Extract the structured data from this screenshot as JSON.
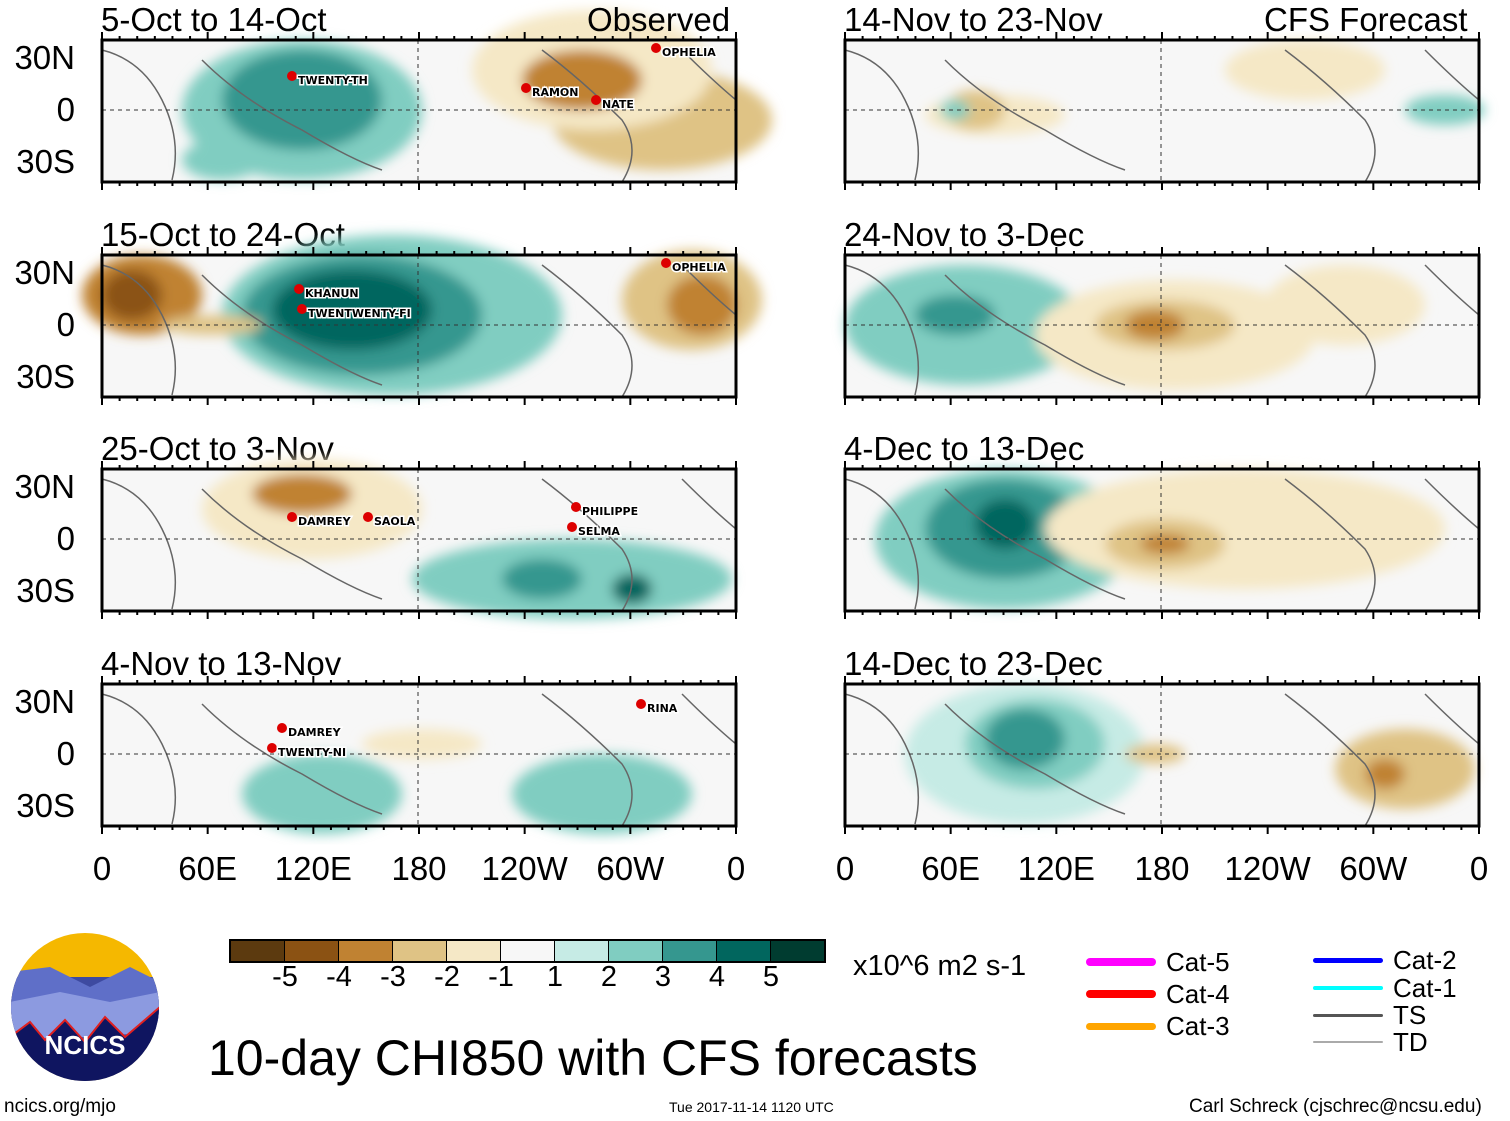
{
  "headers": {
    "left": "Observed",
    "right": "CFS Forecast"
  },
  "panels": [
    {
      "title": "5-Oct to 14-Oct",
      "storms": [
        "TWENTY-TH",
        "RAMON",
        "NATE",
        "OPHELIA"
      ]
    },
    {
      "title": "15-Oct to 24-Oct",
      "storms": [
        "KHANUN",
        "TWENTWENTY-FI",
        "OPHELIA"
      ]
    },
    {
      "title": "25-Oct to 3-Nov",
      "storms": [
        "DAMREY",
        "SAOLA",
        "PHILIPPE",
        "SELMA"
      ]
    },
    {
      "title": "4-Nov to 13-Nov",
      "storms": [
        "DAMREY",
        "TWENTY-NI",
        "RINA"
      ]
    },
    {
      "title": "14-Nov to 23-Nov",
      "storms": []
    },
    {
      "title": "24-Nov to 3-Dec",
      "storms": []
    },
    {
      "title": "4-Dec to 13-Dec",
      "storms": []
    },
    {
      "title": "14-Dec to 23-Dec",
      "storms": []
    }
  ],
  "y_labels": [
    "30N",
    "0",
    "30S"
  ],
  "x_labels": [
    "0",
    "60E",
    "120E",
    "180",
    "120W",
    "60W",
    "0"
  ],
  "colorbar": {
    "colors": [
      "#5c3a0f",
      "#8b5213",
      "#c08232",
      "#dfc385",
      "#f5e8c6",
      "#f7f7f7",
      "#c6ebe5",
      "#80cdc1",
      "#35978f",
      "#01665e",
      "#003c30"
    ],
    "labels": [
      "-5",
      "-4",
      "-3",
      "-2",
      "-1",
      "1",
      "2",
      "3",
      "4",
      "5"
    ],
    "units": "x10^6 m2 s-1"
  },
  "legend": [
    {
      "label": "Cat-5",
      "color": "#ff00ff"
    },
    {
      "label": "Cat-4",
      "color": "#ff0000"
    },
    {
      "label": "Cat-3",
      "color": "#ffa500"
    },
    {
      "label": "Cat-2",
      "color": "#0000ff"
    },
    {
      "label": "Cat-1",
      "color": "#00ffff"
    },
    {
      "label": "TS",
      "color": "#555555"
    },
    {
      "label": "TD",
      "color": "#aaaaaa"
    }
  ],
  "title": "10-day CHI850 with CFS forecasts",
  "logo_text": "NCICS",
  "footer": {
    "left": "ncics.org/mjo",
    "center": "Tue 2017-11-14 1120 UTC",
    "right": "Carl Schreck (cjschrec@ncsu.edu)"
  }
}
